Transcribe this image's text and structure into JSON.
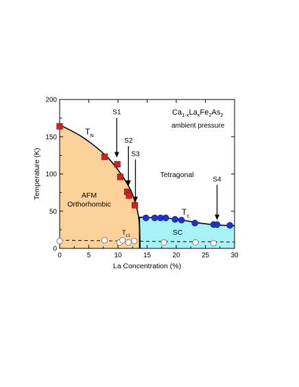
{
  "chart_data": {
    "type": "scatter",
    "xlabel": "La Concentration (%)",
    "ylabel": "Temperature (K)",
    "xlim": [
      0,
      30
    ],
    "ylim": [
      0,
      200
    ],
    "xticks": [
      0,
      5,
      10,
      15,
      20,
      25,
      30
    ],
    "yticks": [
      0,
      50,
      100,
      150,
      200
    ],
    "grid": false,
    "legend": "none",
    "compound": {
      "parts": [
        {
          "text": "Ca",
          "sub": "1-x"
        },
        {
          "text": "La",
          "sub": "x"
        },
        {
          "text": "Fe",
          "sub": "2"
        },
        {
          "text": "As",
          "sub": "2"
        }
      ]
    },
    "condition": "ambient pressure",
    "phase_labels": {
      "afm": "AFM",
      "ortho": "Orthorhombic",
      "tetragonal": "Tetragonal",
      "sc": "SC"
    },
    "curve_labels": {
      "tn": {
        "main": "T",
        "sub": "N"
      },
      "tc": {
        "main": "T",
        "sub": "c"
      },
      "tc1": {
        "main": "T",
        "sub": "c1"
      }
    },
    "sample_markers": [
      {
        "label": "S1",
        "x": 9.8
      },
      {
        "label": "S2",
        "x": 11.8
      },
      {
        "label": "S3",
        "x": 13.0
      },
      {
        "label": "S4",
        "x": 27.0
      }
    ],
    "series": [
      {
        "marker": "square",
        "color": "#cc2222",
        "points": [
          [
            0,
            164
          ],
          [
            7.7,
            123
          ],
          [
            9.9,
            113
          ],
          [
            10.4,
            96
          ],
          [
            11.6,
            76
          ],
          [
            11.9,
            71
          ],
          [
            12.9,
            58
          ]
        ]
      },
      {
        "marker": "circle",
        "color": "#2233cc",
        "points": [
          [
            14.8,
            41
          ],
          [
            16.3,
            41
          ],
          [
            17.3,
            41
          ],
          [
            18.2,
            41
          ],
          [
            19.8,
            39
          ],
          [
            20.9,
            38
          ],
          [
            23.2,
            34
          ],
          [
            26.4,
            32
          ],
          [
            27.0,
            32
          ],
          [
            29.2,
            31
          ]
        ]
      },
      {
        "marker": "open-circle",
        "color": "#ffffff",
        "points": [
          [
            0,
            10
          ],
          [
            7.7,
            11
          ],
          [
            10.3,
            8
          ],
          [
            10.8,
            11
          ],
          [
            11.8,
            8
          ],
          [
            12.8,
            10
          ],
          [
            17.9,
            8
          ],
          [
            23.3,
            8
          ],
          [
            26.4,
            7
          ]
        ]
      }
    ],
    "boundaries": {
      "tn_line": [
        [
          0,
          166
        ],
        [
          4,
          149
        ],
        [
          8,
          124
        ],
        [
          10.5,
          100
        ],
        [
          12.2,
          78
        ],
        [
          13.1,
          58
        ],
        [
          13.5,
          44
        ],
        [
          13.7,
          30
        ],
        [
          13.8,
          0
        ]
      ],
      "tc_line": [
        [
          13.7,
          42
        ],
        [
          15,
          41.5
        ],
        [
          18,
          41
        ],
        [
          21,
          38
        ],
        [
          24,
          34
        ],
        [
          27,
          31.5
        ],
        [
          30,
          30.5
        ]
      ],
      "tc1_line": [
        [
          0,
          11
        ],
        [
          5,
          10.5
        ],
        [
          10,
          10
        ],
        [
          15,
          9.5
        ],
        [
          20,
          9
        ],
        [
          25,
          9
        ],
        [
          30,
          8.5
        ]
      ]
    },
    "fill_colors": {
      "afm": "#f9d199",
      "sc": "#a6f2f5"
    }
  }
}
